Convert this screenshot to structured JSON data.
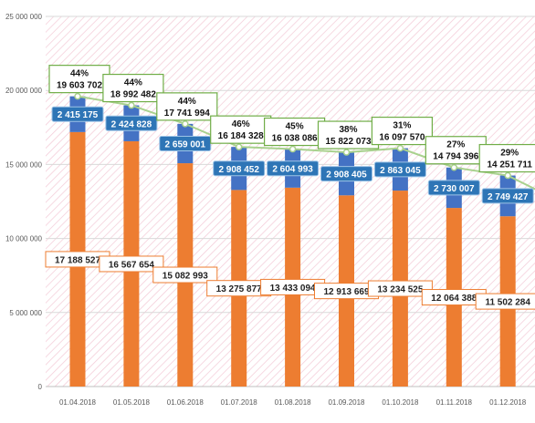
{
  "chart_data": {
    "type": "bar",
    "stacked": true,
    "categories": [
      "01.04.2018",
      "01.05.2018",
      "01.06.2018",
      "01.07.2018",
      "01.08.2018",
      "01.09.2018",
      "01.10.2018",
      "01.11.2018",
      "01.12.2018"
    ],
    "y_ticks": [
      "0",
      "5 000 000",
      "10 000 000",
      "15 000 000",
      "20 000 000",
      "25 000 000"
    ],
    "ylim": [
      0,
      25000000
    ],
    "grid": true,
    "series": [
      {
        "color": "#ED7D31",
        "values": [
          17188527,
          16567654,
          15082993,
          13275877,
          13433094,
          12913669,
          13234525,
          12064388,
          11502284
        ],
        "labels": [
          "17 188 527",
          "16 567 654",
          "15 082 993",
          "13 275 877",
          "13 433 094",
          "12 913 669",
          "13 234 525",
          "12 064 388",
          "11 502 284"
        ]
      },
      {
        "color": "#4472C4",
        "values": [
          2415175,
          2424828,
          2659001,
          2908452,
          2604993,
          2908405,
          2863045,
          2730007,
          2749427
        ],
        "labels": [
          "2 415 175",
          "2 424 828",
          "2 659 001",
          "2 908 452",
          "2 604 993",
          "2 908 405",
          "2 863 045",
          "2 730 007",
          "2 749 427"
        ]
      }
    ],
    "line": {
      "color": "#A9D18E",
      "values": [
        19603702,
        18992482,
        17741994,
        16184328,
        16038086,
        15822073,
        16097570,
        14794396,
        14251711
      ],
      "labels": [
        "19 603 702",
        "18 992 482",
        "17 741 994",
        "16 184 328",
        "16 038 086",
        "15 822 073",
        "16 097 570",
        "14 794 396",
        "14 251 711"
      ],
      "percents": [
        "44%",
        "44%",
        "44%",
        "46%",
        "45%",
        "38%",
        "31%",
        "27%",
        "29%"
      ]
    }
  }
}
